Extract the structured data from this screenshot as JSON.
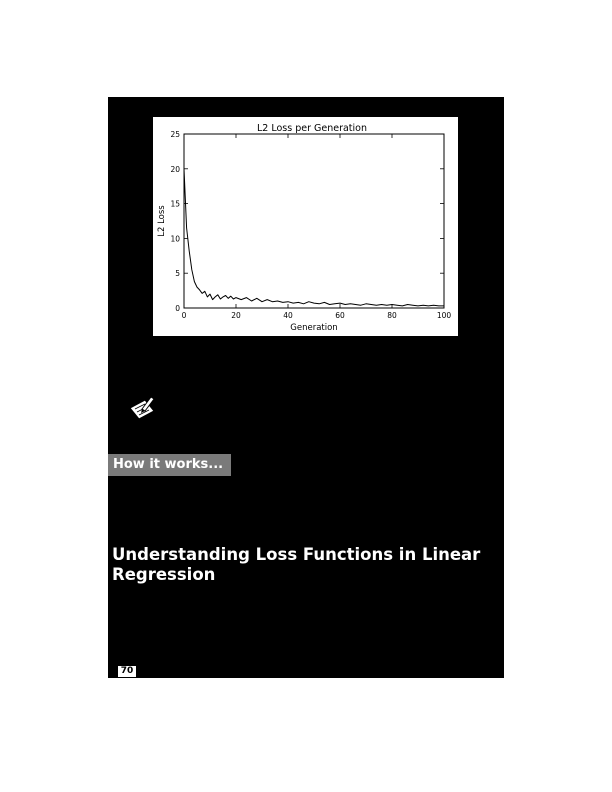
{
  "figure": {
    "title": "L2 Loss per Generation",
    "chart_data": {
      "type": "line",
      "title": "L2 Loss per Generation",
      "xlabel": "Generation",
      "ylabel": "L2 Loss",
      "xlim": [
        0,
        100
      ],
      "ylim": [
        0,
        25
      ],
      "x_ticks": [
        0,
        20,
        40,
        60,
        80,
        100
      ],
      "y_ticks": [
        0,
        5,
        10,
        15,
        20,
        25
      ],
      "grid": false,
      "series": [
        {
          "color": "#000000",
          "x": [
            0,
            1,
            2,
            3,
            4,
            5,
            6,
            7,
            8,
            9,
            10,
            11,
            12,
            13,
            14,
            15,
            16,
            17,
            18,
            19,
            20,
            22,
            24,
            26,
            28,
            30,
            32,
            34,
            36,
            38,
            40,
            42,
            44,
            46,
            48,
            50,
            52,
            54,
            56,
            58,
            60,
            62,
            64,
            66,
            68,
            70,
            72,
            74,
            76,
            78,
            80,
            82,
            84,
            86,
            88,
            90,
            92,
            94,
            96,
            98,
            100
          ],
          "y": [
            20.0,
            11.5,
            8.2,
            5.5,
            3.8,
            3.0,
            2.6,
            2.1,
            2.4,
            1.6,
            2.0,
            1.2,
            1.6,
            1.9,
            1.3,
            1.6,
            1.8,
            1.4,
            1.7,
            1.3,
            1.5,
            1.2,
            1.5,
            1.0,
            1.4,
            0.9,
            1.2,
            0.9,
            1.0,
            0.8,
            0.9,
            0.7,
            0.8,
            0.6,
            0.9,
            0.7,
            0.6,
            0.8,
            0.5,
            0.6,
            0.7,
            0.5,
            0.6,
            0.5,
            0.4,
            0.6,
            0.5,
            0.4,
            0.5,
            0.4,
            0.5,
            0.4,
            0.3,
            0.5,
            0.4,
            0.3,
            0.4,
            0.3,
            0.4,
            0.3,
            0.3
          ]
        }
      ]
    }
  },
  "note": {
    "icon": "pencil-note-icon"
  },
  "section": {
    "label": "How it works..."
  },
  "heading": {
    "text": "Understanding Loss Functions in Linear Regression"
  },
  "page": {
    "number": "70"
  }
}
